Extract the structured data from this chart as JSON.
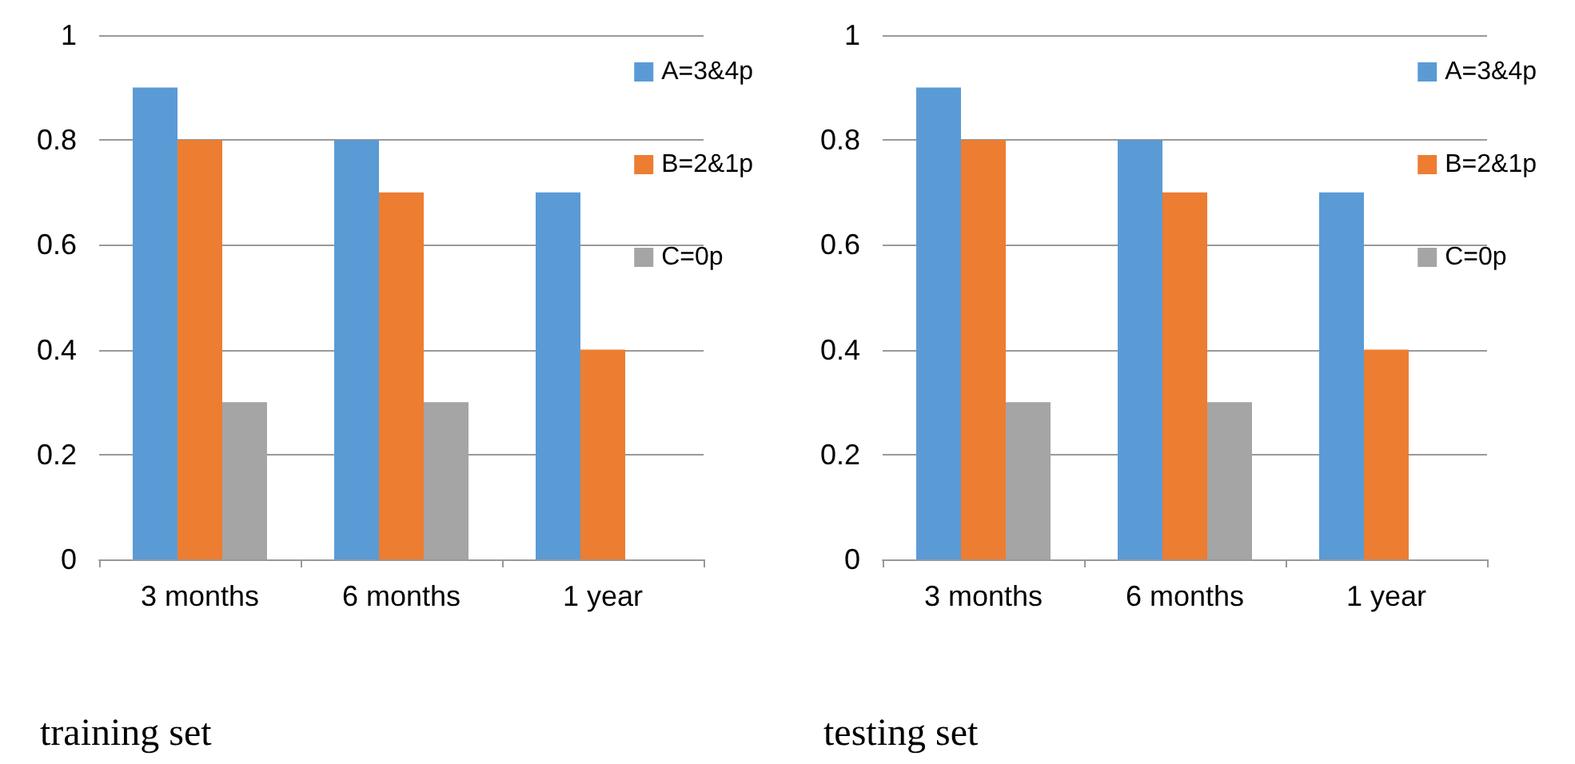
{
  "chart_data": [
    {
      "type": "bar",
      "title": "training set",
      "categories": [
        "3 months",
        "6 months",
        "1 year"
      ],
      "series": [
        {
          "name": "A=3&4p",
          "color": "#5b9bd5",
          "values": [
            0.9,
            0.8,
            0.7
          ]
        },
        {
          "name": "B=2&1p",
          "color": "#ed7d31",
          "values": [
            0.8,
            0.7,
            0.4
          ]
        },
        {
          "name": "C=0p",
          "color": "#a5a5a5",
          "values": [
            0.3,
            0.3,
            null
          ]
        }
      ],
      "ylim": [
        0,
        1
      ],
      "yticks": [
        0,
        0.2,
        0.4,
        0.6,
        0.8,
        1
      ],
      "grid": "y",
      "legend": "right"
    },
    {
      "type": "bar",
      "title": "testing set",
      "categories": [
        "3 months",
        "6 months",
        "1 year"
      ],
      "series": [
        {
          "name": "A=3&4p",
          "color": "#5b9bd5",
          "values": [
            0.9,
            0.8,
            0.7
          ]
        },
        {
          "name": "B=2&1p",
          "color": "#ed7d31",
          "values": [
            0.8,
            0.7,
            0.4
          ]
        },
        {
          "name": "C=0p",
          "color": "#a5a5a5",
          "values": [
            0.3,
            0.3,
            null
          ]
        }
      ],
      "ylim": [
        0,
        1
      ],
      "yticks": [
        0,
        0.2,
        0.4,
        0.6,
        0.8,
        1
      ],
      "grid": "y",
      "legend": "right"
    }
  ]
}
